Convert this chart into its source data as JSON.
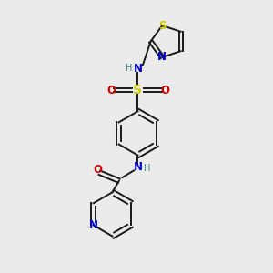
{
  "bg_color": "#ebebeb",
  "bond_color": "#1a1a1a",
  "S_color": "#cccc00",
  "N_color": "#0000cc",
  "O_color": "#cc0000",
  "H_color": "#408080",
  "lw": 1.4,
  "fig_size": [
    3.0,
    3.0
  ],
  "dpi": 100,
  "xlim": [
    0,
    10
  ],
  "ylim": [
    0,
    10
  ]
}
